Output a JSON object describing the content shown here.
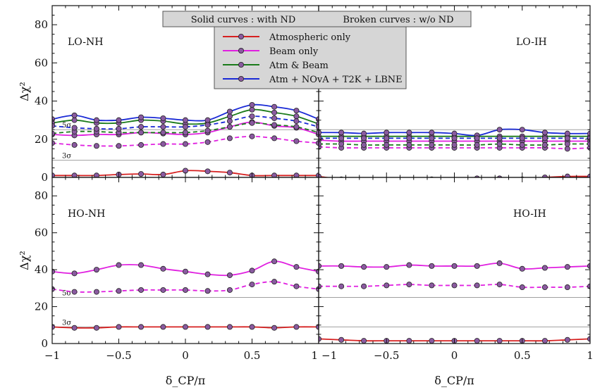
{
  "banner": {
    "solid": "Solid curves : with ND",
    "broken": "Broken curves : w/o ND"
  },
  "legend": [
    {
      "label": "Atmospheric only",
      "color": "#d62020"
    },
    {
      "label": "Beam only",
      "color": "#e020e0"
    },
    {
      "label": "Atm & Beam",
      "color": "#1a7a1a"
    },
    {
      "label": "Atm + NOvA + T2K + LBNE",
      "color": "#1a2ad6"
    }
  ],
  "axes": {
    "xlabel": "δ_CP/π",
    "ylabel": "Δχ²",
    "xticks": [
      "−1",
      "−0.5",
      "0",
      "0.5",
      "1"
    ],
    "yticks": [
      "0",
      "20",
      "40",
      "60",
      "80"
    ]
  },
  "sigma_lines": {
    "three_sigma": "3σ",
    "five_sigma": "5σ"
  },
  "chart_data": [
    {
      "type": "line",
      "panel": "LO-NH",
      "title": "LO-NH",
      "xlim": [
        -1,
        1
      ],
      "ylim": [
        0,
        90
      ],
      "reference_lines": [
        {
          "label": "3σ",
          "y": 9
        },
        {
          "label": "5σ",
          "y": 25
        }
      ],
      "x": [
        -1,
        -0.833,
        -0.667,
        -0.5,
        -0.333,
        -0.167,
        0,
        0.167,
        0.333,
        0.5,
        0.667,
        0.833,
        1
      ],
      "series": [
        {
          "name": "Atmospheric only",
          "color": "#d62020",
          "style": "solid",
          "values": [
            1.0,
            1.0,
            1.0,
            1.5,
            1.8,
            1.5,
            3.5,
            3.2,
            2.5,
            1.0,
            1.0,
            1.0,
            1.0
          ]
        },
        {
          "name": "Beam only",
          "color": "#e020e0",
          "style": "solid",
          "values": [
            22.5,
            22.0,
            22.5,
            22.5,
            23.5,
            23.0,
            22.5,
            23.5,
            26.5,
            29.0,
            27.0,
            26.0,
            22.5
          ]
        },
        {
          "name": "Beam only",
          "color": "#e020e0",
          "style": "dashed",
          "values": [
            18.0,
            17.0,
            16.5,
            16.5,
            17.0,
            17.5,
            17.5,
            18.5,
            20.5,
            21.5,
            20.5,
            19.0,
            18.0
          ]
        },
        {
          "name": "Atm & Beam",
          "color": "#1a7a1a",
          "style": "solid",
          "values": [
            28.5,
            30.0,
            28.5,
            28.5,
            30.0,
            29.5,
            28.0,
            28.5,
            32.0,
            35.5,
            34.0,
            32.0,
            28.0
          ]
        },
        {
          "name": "Atm & Beam",
          "color": "#1a7a1a",
          "style": "dashed",
          "values": [
            23.0,
            24.0,
            24.0,
            23.5,
            23.5,
            23.5,
            23.5,
            24.5,
            26.5,
            28.5,
            27.5,
            26.5,
            23.5
          ]
        },
        {
          "name": "Atm + NOvA + T2K + LBNE",
          "color": "#1a2ad6",
          "style": "solid",
          "values": [
            30.5,
            32.5,
            30.0,
            30.0,
            31.5,
            31.0,
            30.0,
            30.0,
            34.5,
            38.0,
            37.0,
            35.0,
            30.5
          ]
        },
        {
          "name": "Atm + NOvA + T2K + LBNE",
          "color": "#1a2ad6",
          "style": "dashed",
          "values": [
            27.0,
            26.0,
            25.5,
            25.5,
            26.5,
            26.5,
            26.5,
            27.5,
            29.5,
            32.0,
            31.0,
            29.5,
            26.5
          ]
        }
      ]
    },
    {
      "type": "line",
      "panel": "LO-IH",
      "title": "LO-IH",
      "xlim": [
        -1,
        1
      ],
      "ylim": [
        0,
        90
      ],
      "reference_lines": [
        {
          "y": 9
        },
        {
          "y": 25
        }
      ],
      "x": [
        -1,
        -0.833,
        -0.667,
        -0.5,
        -0.333,
        -0.167,
        0,
        0.167,
        0.333,
        0.5,
        0.667,
        0.833,
        1
      ],
      "series": [
        {
          "name": "Atmospheric only",
          "color": "#d62020",
          "style": "solid",
          "values": [
            0.5,
            -1.0,
            -1.5,
            -1.5,
            -1.5,
            -1.0,
            -1.5,
            -0.5,
            -0.5,
            -1.0,
            0.0,
            0.5,
            0.5
          ]
        },
        {
          "name": "Beam only",
          "color": "#e020e0",
          "style": "solid",
          "values": [
            19.5,
            19.0,
            19.0,
            19.0,
            19.0,
            19.0,
            19.0,
            19.0,
            19.0,
            19.0,
            19.0,
            19.0,
            19.0
          ]
        },
        {
          "name": "Beam only",
          "color": "#e020e0",
          "style": "dashed",
          "values": [
            16.0,
            15.5,
            15.5,
            15.5,
            15.5,
            15.5,
            15.5,
            15.5,
            15.5,
            15.5,
            15.5,
            15.0,
            15.5
          ]
        },
        {
          "name": "Atm & Beam",
          "color": "#1a7a1a",
          "style": "solid",
          "values": [
            21.5,
            21.5,
            21.5,
            21.5,
            21.5,
            21.5,
            21.5,
            21.5,
            21.5,
            21.5,
            21.5,
            21.5,
            21.5
          ]
        },
        {
          "name": "Atm & Beam",
          "color": "#1a7a1a",
          "style": "dashed",
          "values": [
            17.5,
            17.5,
            17.0,
            17.0,
            17.0,
            17.0,
            17.0,
            17.0,
            17.5,
            17.0,
            17.0,
            17.5,
            17.5
          ]
        },
        {
          "name": "Atm + NOvA + T2K + LBNE",
          "color": "#1a2ad6",
          "style": "solid",
          "values": [
            23.5,
            23.5,
            23.0,
            23.5,
            23.5,
            23.5,
            23.0,
            22.0,
            25.0,
            25.0,
            23.5,
            23.0,
            23.0
          ]
        },
        {
          "name": "Atm + NOvA + T2K + LBNE",
          "color": "#1a2ad6",
          "style": "dashed",
          "values": [
            20.5,
            20.5,
            20.5,
            20.5,
            20.5,
            20.5,
            20.5,
            20.5,
            20.5,
            20.5,
            20.5,
            20.5,
            20.5
          ]
        }
      ]
    },
    {
      "type": "line",
      "panel": "HO-NH",
      "title": "HO-NH",
      "xlim": [
        -1,
        1
      ],
      "ylim": [
        0,
        90
      ],
      "reference_lines": [
        {
          "label": "3σ",
          "y": 9
        },
        {
          "label": "5σ",
          "y": 25
        }
      ],
      "x": [
        -1,
        -0.833,
        -0.667,
        -0.5,
        -0.333,
        -0.167,
        0,
        0.167,
        0.333,
        0.5,
        0.667,
        0.833,
        1
      ],
      "series": [
        {
          "name": "Atmospheric only",
          "color": "#d62020",
          "style": "solid",
          "values": [
            9.0,
            8.5,
            8.5,
            9.0,
            9.0,
            9.0,
            9.0,
            9.0,
            9.0,
            9.0,
            8.5,
            9.0,
            9.0
          ]
        },
        {
          "name": "Beam only",
          "color": "#e020e0",
          "style": "solid",
          "values": [
            39.0,
            38.0,
            40.0,
            42.5,
            42.5,
            40.5,
            39.0,
            37.5,
            37.0,
            39.5,
            44.5,
            41.5,
            39.0
          ]
        },
        {
          "name": "Beam only",
          "color": "#e020e0",
          "style": "dashed",
          "values": [
            29.5,
            28.0,
            28.0,
            28.5,
            29.0,
            29.0,
            29.0,
            28.5,
            29.0,
            32.0,
            33.5,
            31.0,
            29.5
          ]
        }
      ]
    },
    {
      "type": "line",
      "panel": "HO-IH",
      "title": "HO-IH",
      "xlim": [
        -1,
        1
      ],
      "ylim": [
        0,
        90
      ],
      "reference_lines": [
        {
          "y": 9
        },
        {
          "y": 25
        }
      ],
      "x": [
        -1,
        -0.833,
        -0.667,
        -0.5,
        -0.333,
        -0.167,
        0,
        0.167,
        0.333,
        0.5,
        0.667,
        0.833,
        1
      ],
      "series": [
        {
          "name": "Atmospheric only",
          "color": "#d62020",
          "style": "solid",
          "values": [
            2.5,
            2.0,
            1.5,
            1.5,
            1.5,
            1.5,
            1.5,
            1.5,
            1.5,
            1.5,
            1.5,
            2.0,
            2.5
          ]
        },
        {
          "name": "Beam only",
          "color": "#e020e0",
          "style": "solid",
          "values": [
            42.0,
            42.0,
            41.5,
            41.5,
            42.5,
            42.0,
            42.0,
            42.0,
            43.5,
            40.5,
            41.0,
            41.5,
            42.0
          ]
        },
        {
          "name": "Beam only",
          "color": "#e020e0",
          "style": "dashed",
          "values": [
            31.0,
            31.0,
            31.0,
            31.5,
            32.0,
            31.5,
            31.5,
            31.5,
            32.0,
            30.5,
            30.5,
            30.5,
            31.0
          ]
        }
      ]
    }
  ]
}
